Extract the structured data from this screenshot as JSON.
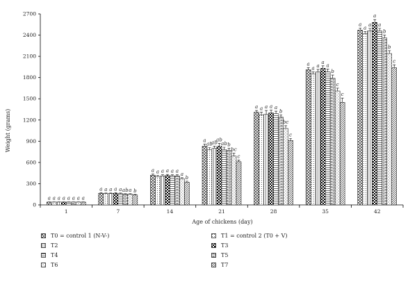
{
  "chart_data": {
    "type": "bar",
    "xlabel": "Age of chickens (day)",
    "ylabel": "Weight (grams)",
    "ylim": [
      0,
      2700
    ],
    "yticks": [
      0,
      300,
      600,
      900,
      1200,
      1500,
      1800,
      2100,
      2400,
      2700
    ],
    "categories": [
      "1",
      "7",
      "14",
      "21",
      "28",
      "35",
      "42"
    ],
    "series": [
      {
        "name": "T0 = control 1 (N-V-)",
        "pattern": "crosshatch",
        "values": [
          40,
          165,
          420,
          830,
          1310,
          1910,
          2470
        ],
        "errors": [
          3,
          8,
          15,
          30,
          25,
          30,
          30
        ],
        "letters": [
          "a",
          "a",
          "a",
          "a",
          "a",
          "a",
          "a"
        ]
      },
      {
        "name": "T1 = control 2 (T0 + V)",
        "pattern": "dots",
        "values": [
          40,
          160,
          400,
          780,
          1270,
          1850,
          2420
        ],
        "errors": [
          3,
          8,
          15,
          30,
          40,
          30,
          30
        ],
        "letters": [
          "a",
          "a",
          "a",
          "ab",
          "a",
          "a",
          "a"
        ]
      },
      {
        "name": "T2",
        "pattern": "vlines",
        "values": [
          40,
          160,
          410,
          800,
          1280,
          1880,
          2460
        ],
        "errors": [
          3,
          8,
          15,
          30,
          55,
          35,
          35
        ],
        "letters": [
          "a",
          "a",
          "a",
          "ab",
          "a",
          "a",
          "a"
        ]
      },
      {
        "name": "T3",
        "pattern": "checker",
        "values": [
          40,
          165,
          415,
          830,
          1300,
          1930,
          2580
        ],
        "errors": [
          3,
          8,
          15,
          40,
          40,
          35,
          40
        ],
        "letters": [
          "a",
          "a",
          "a",
          "ab",
          "a",
          "a",
          "a"
        ]
      },
      {
        "name": "T4",
        "pattern": "hlines",
        "values": [
          40,
          160,
          410,
          780,
          1290,
          1880,
          2460
        ],
        "errors": [
          3,
          8,
          15,
          35,
          35,
          40,
          35
        ],
        "letters": [
          "a",
          "a",
          "a",
          "ab",
          "a",
          "a",
          "a"
        ]
      },
      {
        "name": "T5",
        "pattern": "bricks",
        "values": [
          40,
          150,
          410,
          770,
          1240,
          1790,
          2360
        ],
        "errors": [
          3,
          8,
          15,
          30,
          30,
          45,
          40
        ],
        "letters": [
          "a",
          "ab",
          "a",
          "b",
          "b",
          "b",
          "b"
        ]
      },
      {
        "name": "T6",
        "pattern": "sparse",
        "values": [
          40,
          150,
          370,
          690,
          1080,
          1610,
          2140
        ],
        "errors": [
          3,
          8,
          15,
          40,
          40,
          40,
          40
        ],
        "letters": [
          "a",
          "a",
          "a",
          "bc",
          "bc",
          "c",
          "b"
        ]
      },
      {
        "name": "T7",
        "pattern": "diag",
        "values": [
          40,
          140,
          320,
          610,
          910,
          1450,
          1940
        ],
        "errors": [
          3,
          8,
          15,
          25,
          30,
          60,
          40
        ],
        "letters": [
          "a",
          "b",
          "b",
          "c",
          "c",
          "c",
          "c"
        ]
      }
    ]
  }
}
